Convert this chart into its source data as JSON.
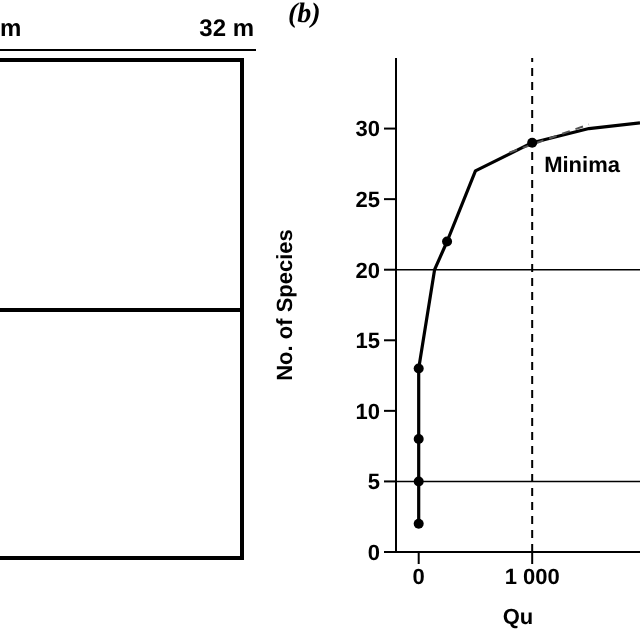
{
  "chart_data": [
    {
      "type": "other",
      "annotations": [
        "m",
        "32 m"
      ]
    },
    {
      "type": "line",
      "title": "(b)",
      "xlabel": "Qu",
      "ylabel": "No. of Species",
      "xlim": [
        -200,
        1950
      ],
      "xticks": [
        0,
        {
          "value": 1000,
          "label": "1 000"
        }
      ],
      "ylim": [
        0,
        35
      ],
      "yticks": [
        0,
        5,
        10,
        15,
        20,
        25,
        30
      ],
      "series": [
        {
          "type": "line",
          "color": "#000000",
          "marker": "none",
          "x": [
            0,
            0,
            0,
            0,
            140,
            250,
            500,
            1000,
            1500,
            1950
          ],
          "values": [
            2,
            5,
            8,
            13,
            20,
            22,
            27,
            29,
            30,
            30.4
          ]
        },
        {
          "type": "scatter",
          "color": "#000000",
          "marker": "circle",
          "x": [
            0,
            0,
            0,
            0,
            250,
            1000
          ],
          "values": [
            2,
            5,
            8,
            13,
            22,
            29
          ]
        },
        {
          "type": "line",
          "color": "#555555",
          "marker": "none",
          "line_style": "dashed",
          "x": [
            800,
            1500
          ],
          "values": [
            28.3,
            30.3
          ]
        }
      ],
      "ref_lines": [
        {
          "axis": "y",
          "value": 20
        },
        {
          "axis": "y",
          "value": 5
        },
        {
          "axis": "x",
          "value": 1000,
          "line_style": "dashed"
        }
      ],
      "annotations": [
        {
          "text": "Minima",
          "x": 1000,
          "y": 29
        }
      ]
    }
  ]
}
